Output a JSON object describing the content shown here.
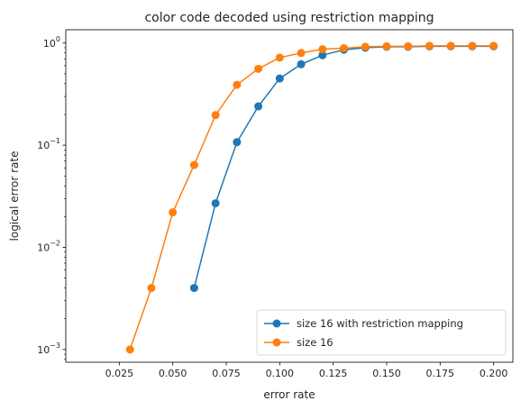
{
  "chart_data": {
    "type": "line",
    "title": "color code decoded using restriction mapping",
    "xlabel": "error rate",
    "ylabel": "logical error rate",
    "xlim": [
      0.0,
      0.209
    ],
    "ylim": [
      0.00075,
      1.35
    ],
    "yscale": "log",
    "x_ticks": [
      0.025,
      0.05,
      0.075,
      0.1,
      0.125,
      0.15,
      0.175,
      0.2
    ],
    "x_tick_labels": [
      "0.025",
      "0.050",
      "0.075",
      "0.100",
      "0.125",
      "0.150",
      "0.175",
      "0.200"
    ],
    "y_ticks": [
      0.001,
      0.01,
      0.1,
      1
    ],
    "y_tick_labels": [
      {
        "base": "10",
        "exp": "−3"
      },
      {
        "base": "10",
        "exp": "−2"
      },
      {
        "base": "10",
        "exp": "−1"
      },
      {
        "base": "10",
        "exp": "0"
      }
    ],
    "legend_position": "bottom-right",
    "grid": false,
    "x": [
      0.01,
      0.02,
      0.03,
      0.04,
      0.05,
      0.06,
      0.07,
      0.08,
      0.09,
      0.1,
      0.11,
      0.12,
      0.13,
      0.14,
      0.15,
      0.16,
      0.17,
      0.18,
      0.19,
      0.2
    ],
    "series": [
      {
        "name": "size 16 with restriction mapping",
        "color": "#1f77b4",
        "values": [
          0,
          0,
          0,
          0,
          0,
          0.004,
          0.027,
          0.107,
          0.24,
          0.45,
          0.62,
          0.76,
          0.86,
          0.9,
          0.92,
          0.92,
          0.93,
          0.93,
          0.93,
          0.93
        ]
      },
      {
        "name": "size 16",
        "color": "#ff7f0e",
        "values": [
          0,
          0,
          0.001,
          0.004,
          0.022,
          0.064,
          0.197,
          0.39,
          0.56,
          0.72,
          0.8,
          0.87,
          0.89,
          0.92,
          0.93,
          0.93,
          0.94,
          0.94,
          0.94,
          0.94
        ]
      }
    ]
  }
}
